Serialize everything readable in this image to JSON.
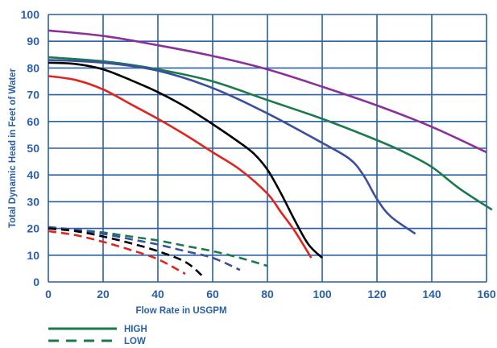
{
  "chart_data": {
    "type": "line",
    "title": "",
    "xlabel": "Flow Rate in USGPM",
    "ylabel": "Total Dynamic Head in Feet of Water",
    "xlim": [
      0,
      160
    ],
    "ylim": [
      0,
      100
    ],
    "x_ticks": [
      "0",
      "20",
      "40",
      "60",
      "80",
      "100",
      "120",
      "140",
      "160"
    ],
    "y_ticks": [
      "0",
      "10",
      "20",
      "30",
      "40",
      "50",
      "60",
      "70",
      "80",
      "90",
      "100"
    ],
    "grid": true,
    "colors": {
      "grid": "#2b5fa8",
      "text": "#2b5fa8",
      "legend_line": "#1a7a4a"
    },
    "legend": [
      {
        "label": "HIGH",
        "style": "solid"
      },
      {
        "label": "LOW",
        "style": "dashed"
      }
    ],
    "series": [
      {
        "color": "#8b2f9a",
        "style": "solid",
        "points": [
          [
            0,
            94
          ],
          [
            20,
            92
          ],
          [
            40,
            88.5
          ],
          [
            60,
            84.5
          ],
          [
            80,
            79.5
          ],
          [
            100,
            73
          ],
          [
            120,
            66
          ],
          [
            140,
            58
          ],
          [
            160,
            48.5
          ]
        ]
      },
      {
        "color": "#1a7a4a",
        "style": "solid",
        "points": [
          [
            0,
            84
          ],
          [
            20,
            82.5
          ],
          [
            40,
            79.5
          ],
          [
            60,
            75
          ],
          [
            80,
            68
          ],
          [
            100,
            61
          ],
          [
            120,
            53
          ],
          [
            130,
            48.5
          ],
          [
            140,
            43
          ],
          [
            150,
            35
          ],
          [
            162,
            27
          ]
        ]
      },
      {
        "color": "#3a4f9e",
        "style": "solid",
        "points": [
          [
            0,
            83
          ],
          [
            20,
            82
          ],
          [
            40,
            79
          ],
          [
            60,
            72.5
          ],
          [
            80,
            63
          ],
          [
            100,
            52
          ],
          [
            110,
            46
          ],
          [
            115,
            40
          ],
          [
            120,
            31
          ],
          [
            125,
            24.5
          ],
          [
            134,
            18
          ]
        ]
      },
      {
        "color": "#000000",
        "style": "solid",
        "points": [
          [
            0,
            82
          ],
          [
            10,
            81.5
          ],
          [
            20,
            79.5
          ],
          [
            30,
            75.5
          ],
          [
            40,
            71
          ],
          [
            50,
            65.5
          ],
          [
            60,
            59
          ],
          [
            70,
            52
          ],
          [
            75,
            48
          ],
          [
            80,
            42
          ],
          [
            85,
            33
          ],
          [
            90,
            23
          ],
          [
            95,
            14
          ],
          [
            100,
            9
          ]
        ]
      },
      {
        "color": "#e0251f",
        "style": "solid",
        "points": [
          [
            0,
            77
          ],
          [
            10,
            75.5
          ],
          [
            20,
            72
          ],
          [
            30,
            66.5
          ],
          [
            40,
            61
          ],
          [
            50,
            55
          ],
          [
            60,
            48.5
          ],
          [
            70,
            42
          ],
          [
            80,
            33
          ],
          [
            85,
            26
          ],
          [
            90,
            19
          ],
          [
            96,
            9
          ]
        ]
      },
      {
        "color": "#1a7a4a",
        "style": "dashed",
        "points": [
          [
            0,
            20.5
          ],
          [
            10,
            19.5
          ],
          [
            20,
            18.5
          ],
          [
            30,
            17
          ],
          [
            40,
            15.5
          ],
          [
            50,
            13.5
          ],
          [
            60,
            11.5
          ],
          [
            70,
            9
          ],
          [
            80,
            6
          ]
        ]
      },
      {
        "color": "#3a4f9e",
        "style": "dashed",
        "points": [
          [
            0,
            20.5
          ],
          [
            10,
            19.5
          ],
          [
            20,
            18
          ],
          [
            30,
            16
          ],
          [
            40,
            14
          ],
          [
            50,
            11.5
          ],
          [
            60,
            9
          ],
          [
            70,
            4.5
          ]
        ]
      },
      {
        "color": "#000000",
        "style": "dashed",
        "points": [
          [
            0,
            20
          ],
          [
            10,
            19
          ],
          [
            20,
            17
          ],
          [
            30,
            14.5
          ],
          [
            40,
            11.5
          ],
          [
            50,
            7.5
          ],
          [
            56,
            2.5
          ]
        ]
      },
      {
        "color": "#e0251f",
        "style": "dashed",
        "points": [
          [
            0,
            19
          ],
          [
            10,
            17.5
          ],
          [
            20,
            15
          ],
          [
            30,
            12
          ],
          [
            40,
            8.5
          ],
          [
            50,
            3
          ]
        ]
      }
    ]
  }
}
